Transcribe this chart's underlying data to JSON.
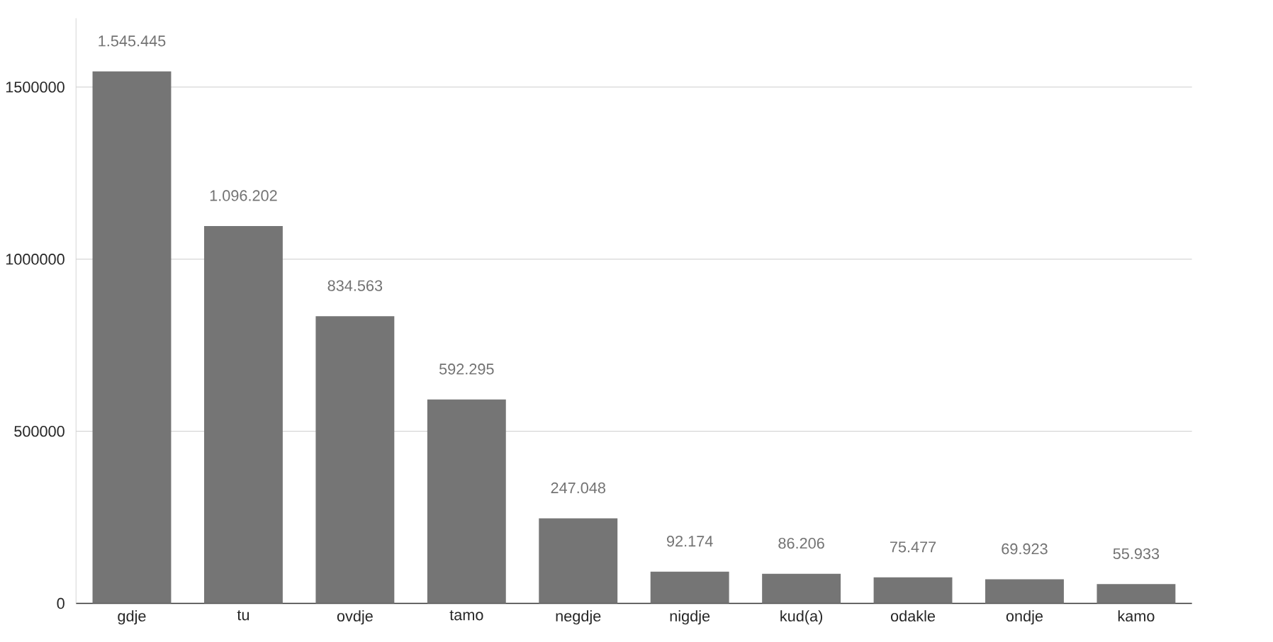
{
  "chart_data": {
    "type": "bar",
    "categories": [
      "gdje",
      "tu",
      "ovdje",
      "tamo",
      "negdje",
      "nigdje",
      "kud(a)",
      "odakle",
      "ondje",
      "kamo"
    ],
    "values": [
      1545445,
      1096202,
      834563,
      592295,
      247048,
      92174,
      86206,
      75477,
      69923,
      55933
    ],
    "value_labels": [
      "1.545.445",
      "1.096.202",
      "834.563",
      "592.295",
      "247.048",
      "92.174",
      "86.206",
      "75.477",
      "69.923",
      "55.933"
    ],
    "color": "#757575",
    "ylim": [
      0,
      1700000
    ],
    "yticks": [
      0,
      500000,
      1000000,
      1500000
    ],
    "grid": "y"
  }
}
